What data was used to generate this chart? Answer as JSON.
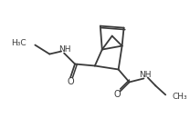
{
  "bg_color": "#ffffff",
  "line_color": "#3a3a3a",
  "line_width": 1.3,
  "font_size": 6.5,
  "xlim": [
    0,
    10
  ],
  "ylim": [
    0,
    7
  ]
}
